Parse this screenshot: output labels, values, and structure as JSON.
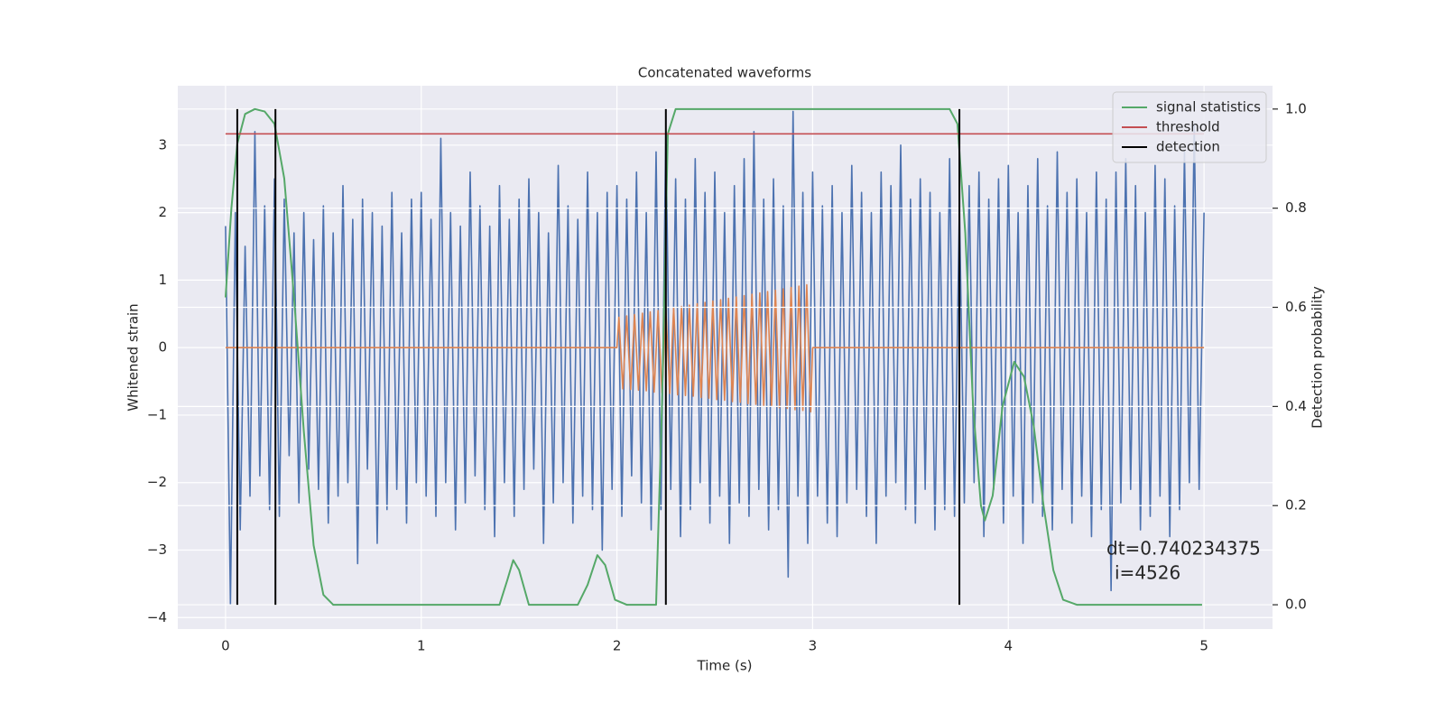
{
  "chart_data": {
    "type": "line",
    "title": "Concatenated waveforms",
    "xlabel": "Time (s)",
    "ylabel": "Whitened strain",
    "y2label": "Detection probability",
    "xlim": [
      -0.244,
      5.35
    ],
    "ylim": [
      -4.17,
      3.88
    ],
    "y2lim": [
      -0.049,
      1.047
    ],
    "xticks": [
      0,
      1,
      2,
      3,
      4,
      5
    ],
    "yticks": [
      {
        "value": -4,
        "label": "−4"
      },
      {
        "value": -3,
        "label": "−3"
      },
      {
        "value": -2,
        "label": "−2"
      },
      {
        "value": -1,
        "label": "−1"
      },
      0,
      1,
      2,
      3
    ],
    "y2ticks": [
      {
        "value": 0,
        "label": "0.0"
      },
      0.2,
      0.4,
      0.6,
      0.8,
      {
        "value": 1,
        "label": "1.0"
      }
    ],
    "grid": true,
    "legend_position": "upper right",
    "background": "#eaeaf2",
    "series": [
      {
        "color": "#4c72b0",
        "x": [
          0,
          0.025,
          0.05,
          0.075,
          0.1,
          0.125,
          0.15,
          0.175,
          0.2,
          0.225,
          0.25,
          0.275,
          0.3,
          0.325,
          0.35,
          0.375,
          0.4,
          0.425,
          0.45,
          0.475,
          0.5,
          0.525,
          0.55,
          0.575,
          0.6,
          0.625,
          0.65,
          0.675,
          0.7,
          0.725,
          0.75,
          0.775,
          0.8,
          0.825,
          0.85,
          0.875,
          0.9,
          0.925,
          0.95,
          0.975,
          1,
          1.025,
          1.05,
          1.075,
          1.1,
          1.125,
          1.15,
          1.175,
          1.2,
          1.225,
          1.25,
          1.275,
          1.3,
          1.325,
          1.35,
          1.375,
          1.4,
          1.425,
          1.45,
          1.475,
          1.5,
          1.525,
          1.55,
          1.575,
          1.6,
          1.625,
          1.65,
          1.675,
          1.7,
          1.725,
          1.75,
          1.775,
          1.8,
          1.825,
          1.85,
          1.875,
          1.9,
          1.925,
          1.95,
          1.975,
          2,
          2.025,
          2.05,
          2.075,
          2.1,
          2.125,
          2.15,
          2.175,
          2.2,
          2.225,
          2.25,
          2.275,
          2.3,
          2.325,
          2.35,
          2.375,
          2.4,
          2.425,
          2.45,
          2.475,
          2.5,
          2.525,
          2.55,
          2.575,
          2.6,
          2.625,
          2.65,
          2.675,
          2.7,
          2.725,
          2.75,
          2.775,
          2.8,
          2.825,
          2.85,
          2.875,
          2.9,
          2.925,
          2.95,
          2.975,
          3,
          3.025,
          3.05,
          3.075,
          3.1,
          3.125,
          3.15,
          3.175,
          3.2,
          3.225,
          3.25,
          3.275,
          3.3,
          3.325,
          3.35,
          3.375,
          3.4,
          3.425,
          3.45,
          3.475,
          3.5,
          3.525,
          3.55,
          3.575,
          3.6,
          3.625,
          3.65,
          3.675,
          3.7,
          3.725,
          3.75,
          3.775,
          3.8,
          3.825,
          3.85,
          3.875,
          3.9,
          3.925,
          3.95,
          3.975,
          4,
          4.025,
          4.05,
          4.075,
          4.1,
          4.125,
          4.15,
          4.175,
          4.2,
          4.225,
          4.25,
          4.275,
          4.3,
          4.325,
          4.35,
          4.375,
          4.4,
          4.425,
          4.45,
          4.475,
          4.5,
          4.525,
          4.55,
          4.575,
          4.6,
          4.625,
          4.65,
          4.675,
          4.7,
          4.725,
          4.75,
          4.775,
          4.8,
          4.825,
          4.85,
          4.875,
          4.9,
          4.925,
          4.95,
          4.975,
          5
        ],
        "values": [
          1.8,
          -3.8,
          2.0,
          -2.7,
          1.5,
          -2.2,
          3.2,
          -1.9,
          2.1,
          -2.4,
          2.5,
          -2.5,
          2.2,
          -1.6,
          1.7,
          -2.3,
          2.0,
          -1.8,
          1.6,
          -2.1,
          2.1,
          -2.6,
          1.7,
          -2.2,
          2.4,
          -2.0,
          1.9,
          -3.2,
          2.2,
          -1.8,
          2.0,
          -2.9,
          1.8,
          -2.4,
          2.3,
          -2.1,
          1.7,
          -2.6,
          2.2,
          -2.0,
          2.3,
          -2.2,
          1.9,
          -2.5,
          3.1,
          -2.0,
          2.0,
          -2.7,
          1.8,
          -2.3,
          2.6,
          -1.9,
          2.1,
          -2.4,
          1.8,
          -2.8,
          2.4,
          -2.0,
          1.9,
          -2.5,
          2.2,
          -2.1,
          2.5,
          -1.8,
          2.0,
          -2.9,
          1.7,
          -2.3,
          2.7,
          -2.0,
          2.1,
          -2.6,
          1.9,
          -2.2,
          2.6,
          -2.4,
          2.0,
          -3.0,
          2.3,
          -2.1,
          2.4,
          -2.5,
          2.2,
          -1.9,
          2.6,
          -2.3,
          2.0,
          -2.7,
          2.9,
          -2.4,
          3.2,
          -2.1,
          2.5,
          -2.8,
          2.2,
          -2.4,
          2.8,
          -2.0,
          2.3,
          -2.6,
          2.6,
          -2.2,
          2.0,
          -2.9,
          2.4,
          -2.3,
          2.8,
          -2.5,
          3.2,
          -2.1,
          2.2,
          -2.7,
          2.5,
          -2.4,
          2.1,
          -3.4,
          3.5,
          -2.2,
          2.3,
          -2.9,
          2.6,
          -2.2,
          2.1,
          -2.6,
          2.4,
          -2.8,
          2.0,
          -2.3,
          2.7,
          -2.1,
          2.3,
          -2.5,
          2.0,
          -2.9,
          2.6,
          -2.2,
          2.4,
          -2.0,
          3.0,
          -2.4,
          2.2,
          -2.6,
          2.5,
          -2.1,
          2.3,
          -2.7,
          2.0,
          -2.4,
          2.8,
          -2.5,
          2.1,
          -2.3,
          2.4,
          -2.0,
          2.6,
          -2.8,
          2.2,
          -2.1,
          2.5,
          -2.6,
          2.7,
          -2.2,
          2.0,
          -2.9,
          2.4,
          -2.3,
          2.8,
          -2.5,
          2.1,
          -2.7,
          2.9,
          -2.1,
          2.3,
          -2.6,
          2.5,
          -2.2,
          2.0,
          -2.8,
          2.6,
          -2.4,
          2.2,
          -3.6,
          2.6,
          -2.3,
          2.8,
          -2.1,
          2.4,
          -2.7,
          2.0,
          -2.5,
          2.7,
          -2.2,
          2.5,
          -2.8,
          2.1,
          -2.4,
          2.9,
          -2.0,
          3.3,
          -2.1,
          2.0
        ]
      },
      {
        "color": "#dd8452",
        "x": [
          0,
          2.0,
          2.01,
          2.03,
          2.05,
          2.07,
          2.09,
          2.11,
          2.13,
          2.15,
          2.17,
          2.19,
          2.21,
          2.23,
          2.25,
          2.27,
          2.29,
          2.31,
          2.33,
          2.35,
          2.37,
          2.39,
          2.41,
          2.43,
          2.45,
          2.47,
          2.49,
          2.51,
          2.53,
          2.55,
          2.57,
          2.59,
          2.61,
          2.63,
          2.65,
          2.67,
          2.69,
          2.71,
          2.73,
          2.75,
          2.77,
          2.79,
          2.81,
          2.83,
          2.85,
          2.87,
          2.89,
          2.91,
          2.93,
          2.95,
          2.97,
          2.99,
          3.0,
          5.0
        ],
        "values": [
          0,
          0,
          0.45,
          -0.61,
          0.47,
          -0.62,
          0.49,
          -0.63,
          0.51,
          -0.64,
          0.53,
          -0.66,
          0.55,
          -0.67,
          0.57,
          -0.68,
          0.59,
          -0.7,
          0.61,
          -0.71,
          0.63,
          -0.72,
          0.65,
          -0.74,
          0.67,
          -0.75,
          0.69,
          -0.77,
          0.71,
          -0.78,
          0.73,
          -0.8,
          0.75,
          -0.81,
          0.77,
          -0.83,
          0.79,
          -0.84,
          0.81,
          -0.86,
          0.83,
          -0.87,
          0.85,
          -0.89,
          0.87,
          -0.9,
          0.89,
          -0.92,
          0.91,
          -0.93,
          0.93,
          -0.95,
          0,
          0
        ]
      },
      {
        "name": "signal statistics",
        "color": "#55a868",
        "axis": "y2",
        "x": [
          0,
          0.03,
          0.06,
          0.1,
          0.15,
          0.2,
          0.25,
          0.3,
          0.35,
          0.4,
          0.45,
          0.5,
          0.55,
          1.4,
          1.44,
          1.47,
          1.5,
          1.55,
          1.8,
          1.85,
          1.9,
          1.94,
          1.99,
          2.05,
          2.2,
          2.23,
          2.26,
          2.3,
          3.7,
          3.74,
          3.78,
          3.82,
          3.86,
          3.88,
          3.92,
          3.97,
          4.03,
          4.08,
          4.13,
          4.18,
          4.23,
          4.28,
          4.35,
          4.99
        ],
        "values": [
          0.62,
          0.8,
          0.93,
          0.99,
          1.0,
          0.995,
          0.97,
          0.86,
          0.62,
          0.35,
          0.12,
          0.02,
          0.0,
          0.0,
          0.05,
          0.09,
          0.07,
          0.0,
          0.0,
          0.04,
          0.1,
          0.08,
          0.01,
          0.0,
          0.0,
          0.4,
          0.95,
          1.0,
          1.0,
          0.97,
          0.75,
          0.4,
          0.2,
          0.17,
          0.22,
          0.4,
          0.49,
          0.46,
          0.36,
          0.2,
          0.07,
          0.01,
          0.0,
          0.0
        ]
      }
    ],
    "threshold": {
      "name": "threshold",
      "color": "#c44e52",
      "axis": "y2",
      "value": 0.95,
      "xmin": 0,
      "xmax": 5
    },
    "detection": {
      "name": "detection",
      "color": "#000000",
      "axis": "y2",
      "x": [
        0.06,
        0.255,
        2.25,
        3.75
      ],
      "ymin": 0,
      "ymax": 1
    },
    "annotation": [
      "dt=0.740234375",
      "i=4526"
    ]
  }
}
